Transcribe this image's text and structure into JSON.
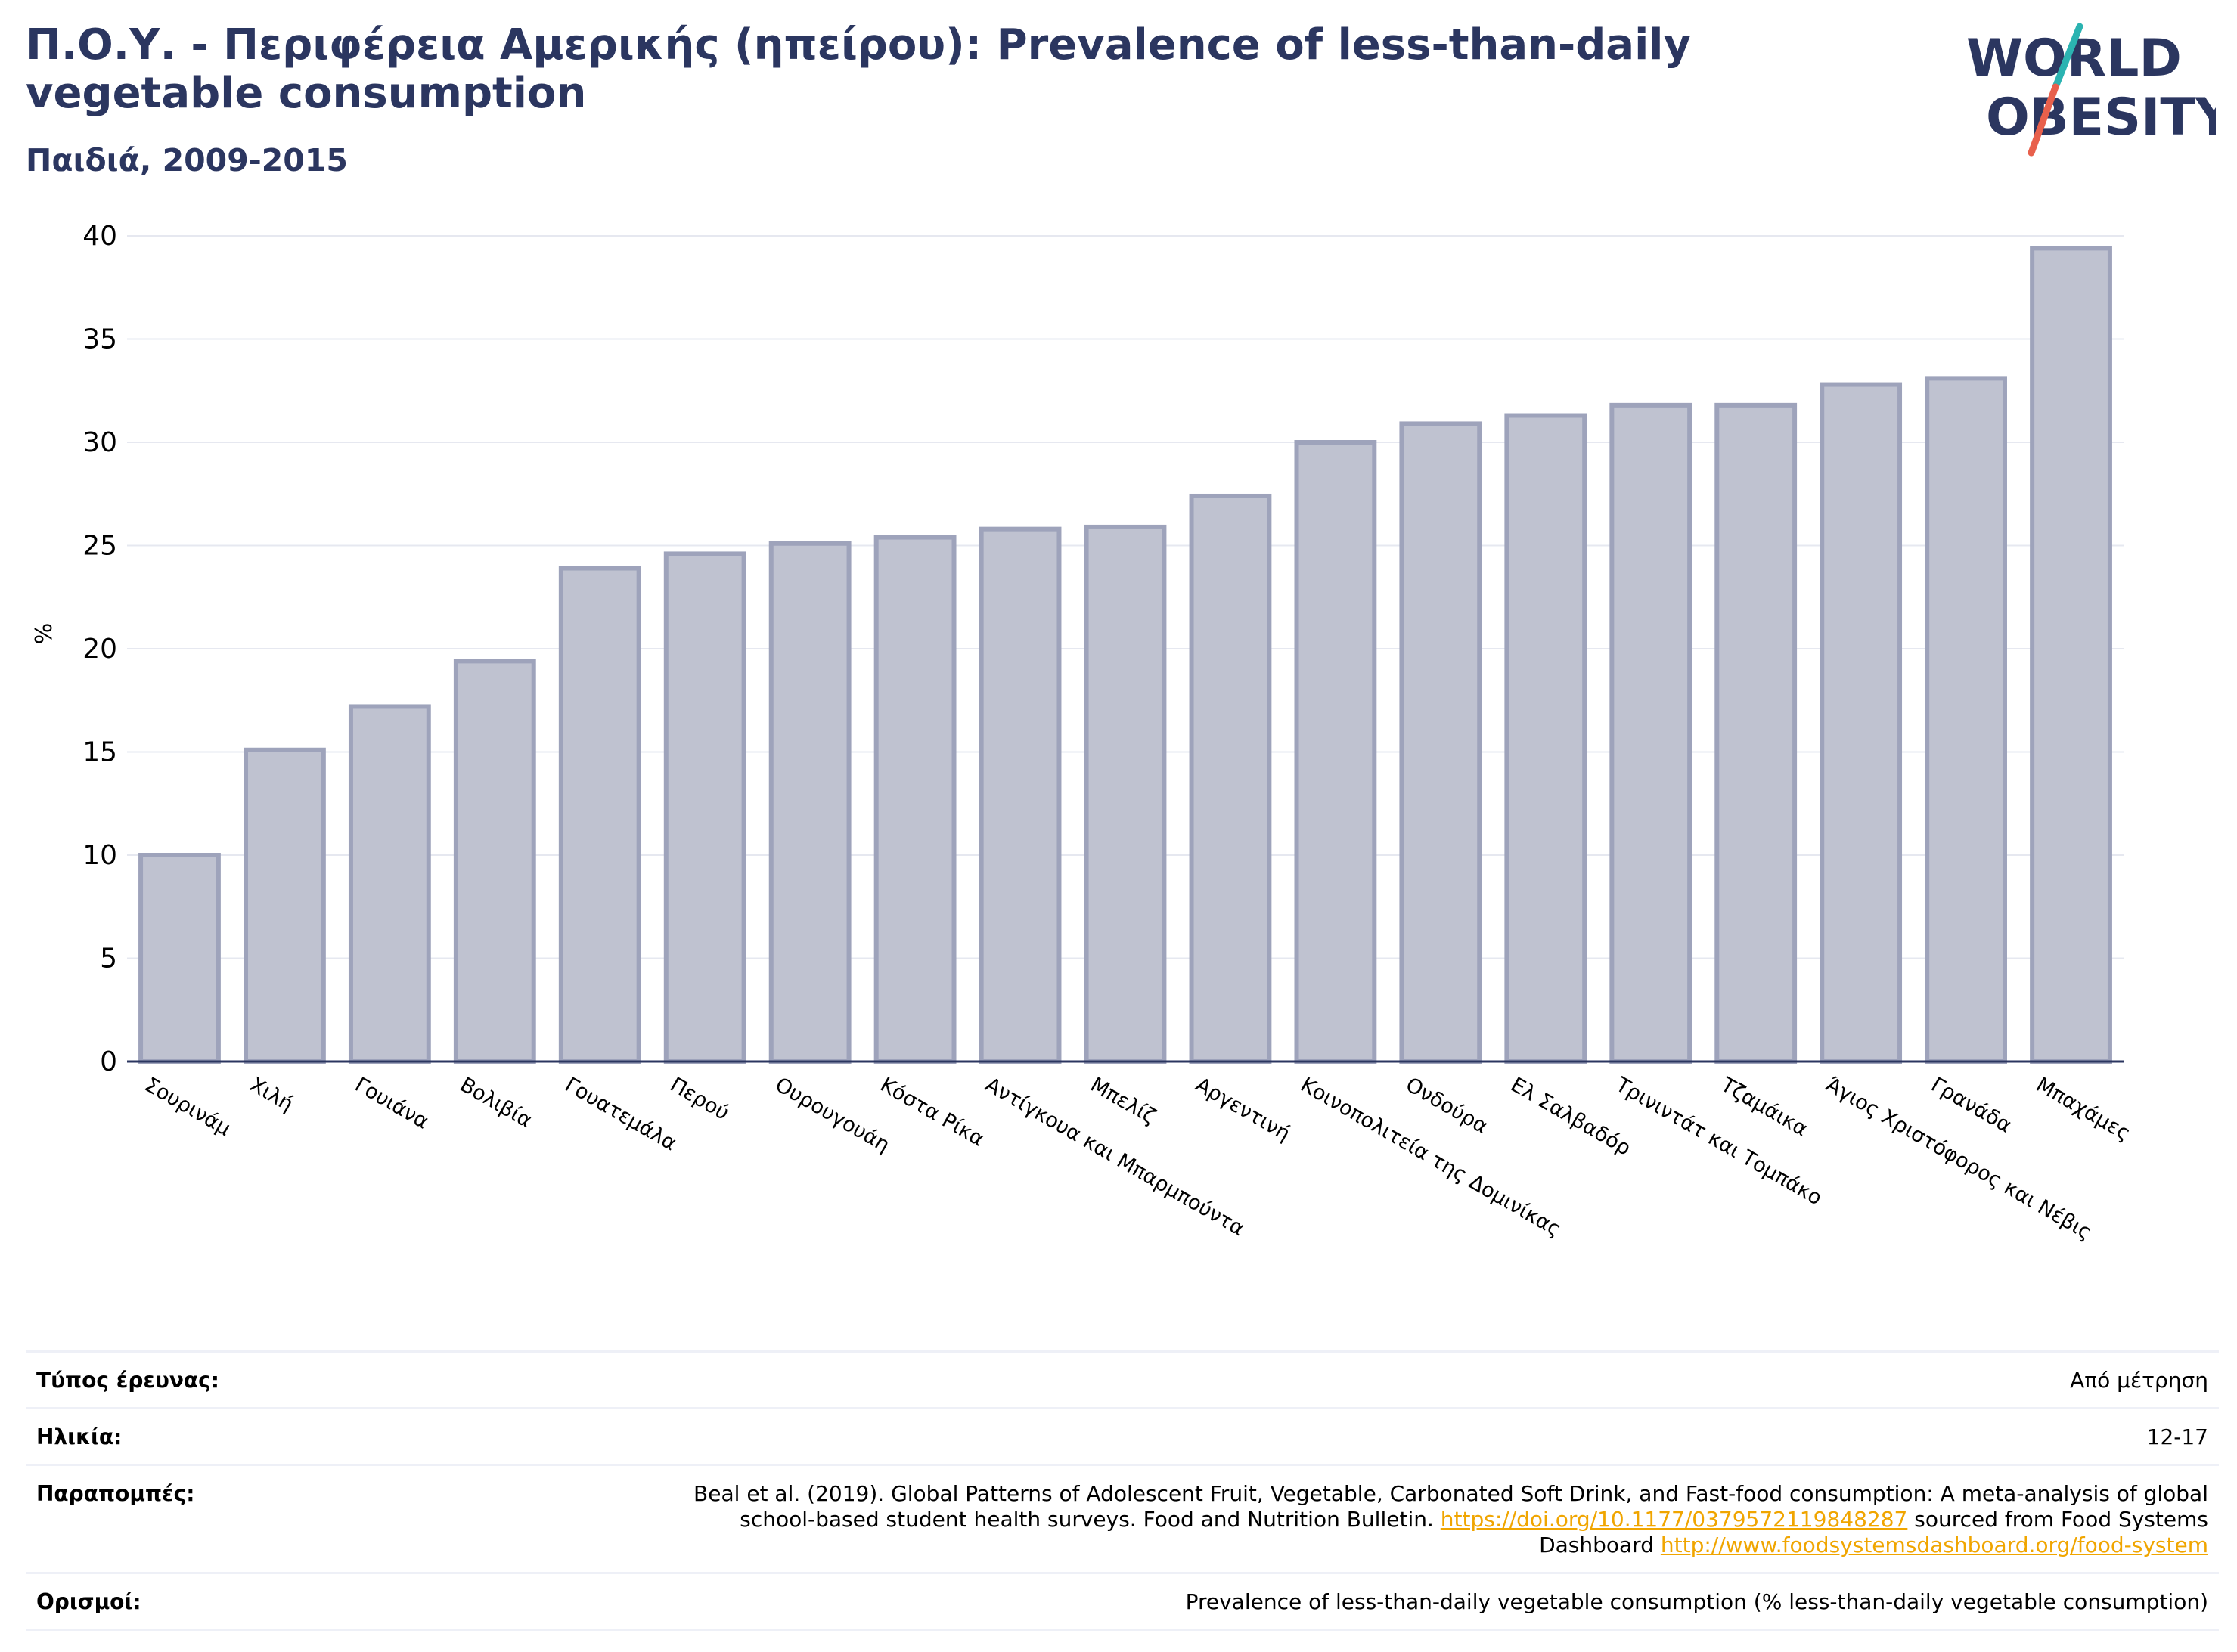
{
  "header": {
    "title": "Π.Ο.Υ. - Περιφέρεια Αμερικής (ηπείρου): Prevalence of less-than-daily vegetable consumption",
    "subtitle": "Παιδιά, 2009-2015"
  },
  "logo": {
    "line1": "WORLD",
    "line2": "OBESITY",
    "colors": {
      "text": "#2b3660",
      "slash_top": "#2bb3b1",
      "slash_bottom": "#e8604c"
    }
  },
  "chart_data": {
    "type": "bar",
    "title": "",
    "xlabel": "",
    "ylabel": "%",
    "ylim": [
      0,
      40
    ],
    "yticks": [
      0,
      5,
      10,
      15,
      20,
      25,
      30,
      35,
      40
    ],
    "grid": true,
    "categories": [
      "Σουρινάμ",
      "Χιλή",
      "Γουιάνα",
      "Βολιβία",
      "Γουατεμάλα",
      "Περού",
      "Ουρουγουάη",
      "Κόστα Ρίκα",
      "Αντίγκουα και Μπαρμπούντα",
      "Μπελίζ",
      "Αργεντινή",
      "Κοινοπολιτεία της Δομινίκας",
      "Ονδούρα",
      "Ελ Σαλβαδόρ",
      "Τρινιντάτ και Τομπάκο",
      "Τζαμάικα",
      "Άγιος Χριστόφορος και Νέβις",
      "Γρανάδα",
      "Μπαχάμες"
    ],
    "values": [
      10.0,
      15.1,
      17.2,
      19.4,
      23.9,
      24.6,
      25.1,
      25.4,
      25.8,
      25.9,
      27.4,
      30.0,
      30.9,
      31.3,
      31.8,
      31.8,
      32.8,
      33.1,
      39.4
    ],
    "colors": {
      "bar_fill": "#bfc2d0",
      "bar_stroke": "#9ea3bb",
      "axis": "#2b3660",
      "grid": "#e6e8f0"
    }
  },
  "meta": {
    "survey_type_label": "Τύπος έρευνας:",
    "survey_type_value": "Από μέτρηση",
    "age_label": "Ηλικία:",
    "age_value": "12-17",
    "references_label": "Παραπομπές:",
    "references_text_1": "Beal et al. (2019). Global Patterns of Adolescent Fruit, Vegetable, Carbonated Soft Drink, and Fast-food consumption: A meta-analysis of global school-based student health surveys. Food and Nutrition Bulletin. ",
    "references_link_1": "https://doi.org/10.1177/0379572119848287",
    "references_text_2": " sourced from Food Systems Dashboard ",
    "references_link_2": "http://www.foodsystemsdashboard.org/food-system",
    "definitions_label": "Ορισμοί:",
    "definitions_value": "Prevalence of less-than-daily vegetable consumption (% less-than-daily vegetable consumption)"
  }
}
